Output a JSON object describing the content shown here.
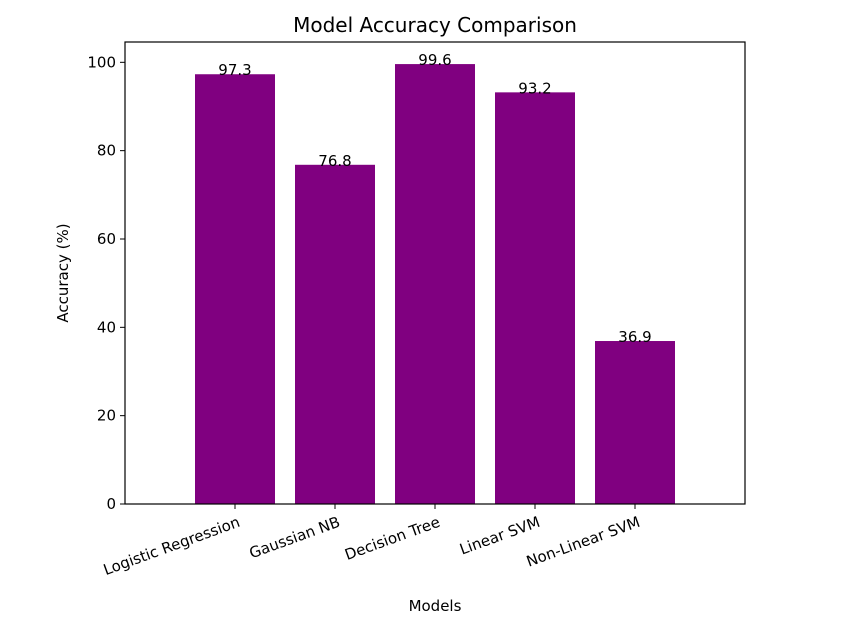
{
  "chart_data": {
    "type": "bar",
    "title": "Model Accuracy Comparison",
    "xlabel": "Models",
    "ylabel": "Accuracy (%)",
    "categories": [
      "Logistic Regression",
      "Gaussian NB",
      "Decision Tree",
      "Linear SVM",
      "Non-Linear SVM"
    ],
    "values": [
      97.3,
      76.8,
      99.6,
      93.2,
      36.9
    ],
    "value_labels": [
      "97.3",
      "76.8",
      "99.6",
      "93.2",
      "36.9"
    ],
    "ylim": [
      0,
      104.6
    ],
    "yticks": [
      0,
      20,
      40,
      60,
      80,
      100
    ],
    "ytick_labels": [
      "0",
      "20",
      "40",
      "60",
      "80",
      "100"
    ],
    "grid": false,
    "bar_color": "#800080",
    "xtick_rotation_deg": 20
  }
}
